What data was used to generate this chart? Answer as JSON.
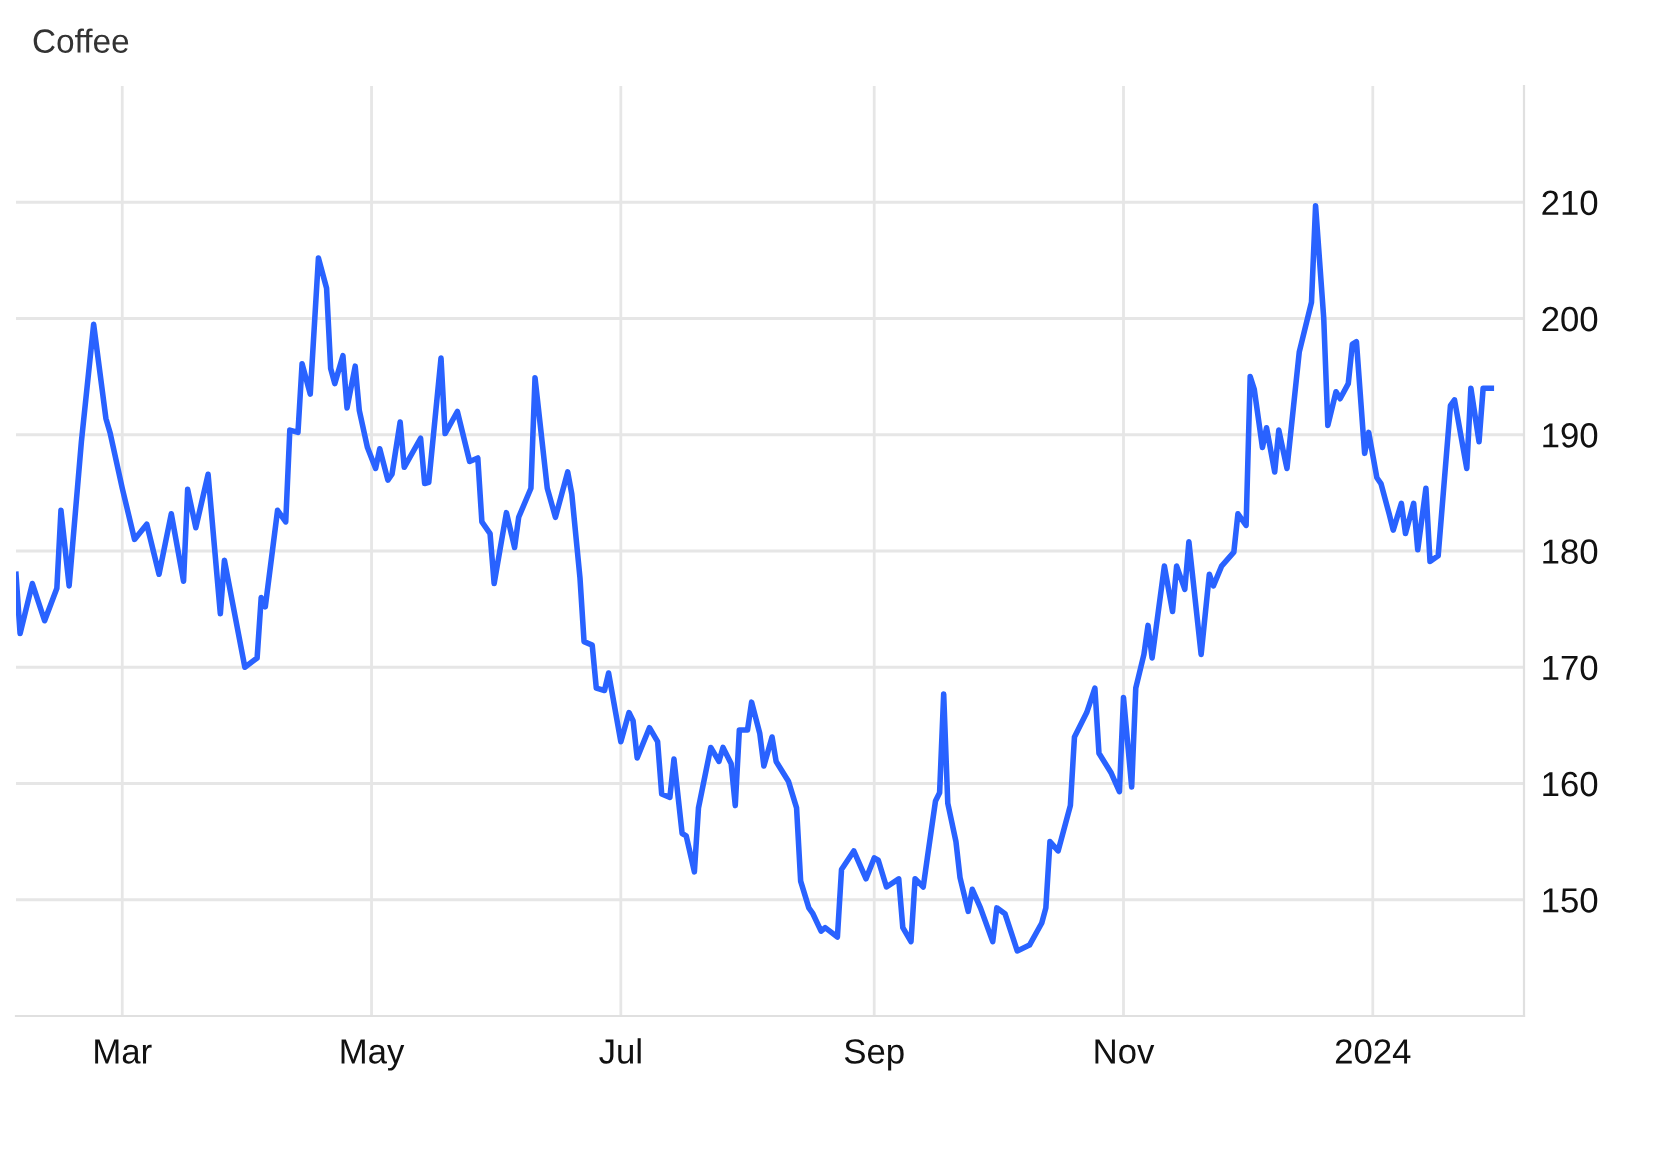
{
  "chart_data": {
    "type": "line",
    "title": "Coffee",
    "x": [
      "2023-02-03",
      "2023-02-04",
      "2023-02-07",
      "2023-02-10",
      "2023-02-13",
      "2023-02-14",
      "2023-02-16",
      "2023-02-19",
      "2023-02-22",
      "2023-02-25",
      "2023-02-26",
      "2023-03-01",
      "2023-03-04",
      "2023-03-07",
      "2023-03-10",
      "2023-03-13",
      "2023-03-16",
      "2023-03-17",
      "2023-03-19",
      "2023-03-22",
      "2023-03-25",
      "2023-03-26",
      "2023-03-31",
      "2023-04-03",
      "2023-04-04",
      "2023-04-05",
      "2023-04-08",
      "2023-04-10",
      "2023-04-11",
      "2023-04-13",
      "2023-04-14",
      "2023-04-16",
      "2023-04-18",
      "2023-04-20",
      "2023-04-21",
      "2023-04-22",
      "2023-04-24",
      "2023-04-25",
      "2023-04-27",
      "2023-04-28",
      "2023-04-30",
      "2023-05-02",
      "2023-05-03",
      "2023-05-05",
      "2023-05-06",
      "2023-05-08",
      "2023-05-09",
      "2023-05-13",
      "2023-05-14",
      "2023-05-15",
      "2023-05-18",
      "2023-05-19",
      "2023-05-22",
      "2023-05-25",
      "2023-05-27",
      "2023-05-28",
      "2023-05-30",
      "2023-05-31",
      "2023-06-03",
      "2023-06-05",
      "2023-06-06",
      "2023-06-09",
      "2023-06-10",
      "2023-06-13",
      "2023-06-15",
      "2023-06-18",
      "2023-06-19",
      "2023-06-21",
      "2023-06-22",
      "2023-06-24",
      "2023-06-25",
      "2023-06-27",
      "2023-06-28",
      "2023-07-01",
      "2023-07-03",
      "2023-07-04",
      "2023-07-05",
      "2023-07-08",
      "2023-07-10",
      "2023-07-11",
      "2023-07-13",
      "2023-07-14",
      "2023-07-16",
      "2023-07-17",
      "2023-07-19",
      "2023-07-20",
      "2023-07-23",
      "2023-07-25",
      "2023-07-26",
      "2023-07-28",
      "2023-07-29",
      "2023-07-30",
      "2023-08-01",
      "2023-08-02",
      "2023-08-04",
      "2023-08-05",
      "2023-08-07",
      "2023-08-08",
      "2023-08-11",
      "2023-08-13",
      "2023-08-14",
      "2023-08-16",
      "2023-08-17",
      "2023-08-19",
      "2023-08-20",
      "2023-08-23",
      "2023-08-24",
      "2023-08-27",
      "2023-08-30",
      "2023-09-01",
      "2023-09-02",
      "2023-09-04",
      "2023-09-07",
      "2023-09-08",
      "2023-09-10",
      "2023-09-11",
      "2023-09-13",
      "2023-09-14",
      "2023-09-16",
      "2023-09-17",
      "2023-09-18",
      "2023-09-19",
      "2023-09-21",
      "2023-09-22",
      "2023-09-24",
      "2023-09-25",
      "2023-09-27",
      "2023-09-30",
      "2023-10-01",
      "2023-10-03",
      "2023-10-06",
      "2023-10-09",
      "2023-10-12",
      "2023-10-13",
      "2023-10-14",
      "2023-10-16",
      "2023-10-19",
      "2023-10-20",
      "2023-10-23",
      "2023-10-25",
      "2023-10-26",
      "2023-10-29",
      "2023-10-31",
      "2023-11-01",
      "2023-11-03",
      "2023-11-04",
      "2023-11-06",
      "2023-11-07",
      "2023-11-08",
      "2023-11-11",
      "2023-11-13",
      "2023-11-14",
      "2023-11-16",
      "2023-11-17",
      "2023-11-20",
      "2023-11-22",
      "2023-11-23",
      "2023-11-25",
      "2023-11-28",
      "2023-11-29",
      "2023-12-01",
      "2023-12-02",
      "2023-12-03",
      "2023-12-05",
      "2023-12-06",
      "2023-12-08",
      "2023-12-09",
      "2023-12-11",
      "2023-12-14",
      "2023-12-17",
      "2023-12-18",
      "2023-12-20",
      "2023-12-21",
      "2023-12-23",
      "2023-12-24",
      "2023-12-26",
      "2023-12-27",
      "2023-12-28",
      "2023-12-30",
      "2023-12-31",
      "2024-01-02",
      "2024-01-03",
      "2024-01-05",
      "2024-01-06",
      "2024-01-08",
      "2024-01-09",
      "2024-01-11",
      "2024-01-12",
      "2024-01-14",
      "2024-01-15",
      "2024-01-17",
      "2024-01-20",
      "2024-01-21",
      "2024-01-24",
      "2024-01-25",
      "2024-01-27",
      "2024-01-28",
      "2024-01-30"
    ],
    "series": [
      {
        "color": "#2962ff",
        "values": [
          178.0,
          172.9,
          177.2,
          174.0,
          176.8,
          183.5,
          177.0,
          189.4,
          199.5,
          191.4,
          190.2,
          185.4,
          181.0,
          182.3,
          178.0,
          183.2,
          177.4,
          185.3,
          182.0,
          186.6,
          174.6,
          179.2,
          170.0,
          170.8,
          176.0,
          175.2,
          183.5,
          182.5,
          190.4,
          190.2,
          196.1,
          193.5,
          205.2,
          202.6,
          195.7,
          194.4,
          196.8,
          192.3,
          195.9,
          192.1,
          188.9,
          187.1,
          188.8,
          186.1,
          186.6,
          191.1,
          187.2,
          189.7,
          185.8,
          185.9,
          196.6,
          190.1,
          192.0,
          187.7,
          188.0,
          182.5,
          181.5,
          177.2,
          183.3,
          180.3,
          182.9,
          185.4,
          194.9,
          185.4,
          182.9,
          186.8,
          184.9,
          177.7,
          172.2,
          171.9,
          168.2,
          168.0,
          169.5,
          163.6,
          166.1,
          165.4,
          162.2,
          164.8,
          163.6,
          159.1,
          158.8,
          162.1,
          155.7,
          155.5,
          152.4,
          157.9,
          163.1,
          161.9,
          163.1,
          161.7,
          158.1,
          164.6,
          164.6,
          167.0,
          164.3,
          161.5,
          164.0,
          161.9,
          160.2,
          157.9,
          151.6,
          149.3,
          148.8,
          147.3,
          147.6,
          146.8,
          152.6,
          154.2,
          151.8,
          153.6,
          153.4,
          151.1,
          151.8,
          147.6,
          146.4,
          151.8,
          151.1,
          153.6,
          158.5,
          159.2,
          167.7,
          158.3,
          155.0,
          151.9,
          149.0,
          150.9,
          149.3,
          146.4,
          149.3,
          148.8,
          145.6,
          146.1,
          148.0,
          149.3,
          155.0,
          154.2,
          158.1,
          164.0,
          166.1,
          168.2,
          162.6,
          160.9,
          159.3,
          167.4,
          159.7,
          168.2,
          171.1,
          173.6,
          170.8,
          178.7,
          174.8,
          178.7,
          176.7,
          180.8,
          171.1,
          178.0,
          177.0,
          178.7,
          179.9,
          183.2,
          182.2,
          195.0,
          193.9,
          188.9,
          190.6,
          186.8,
          190.4,
          187.1,
          197.1,
          201.4,
          209.7,
          200.0,
          190.8,
          193.7,
          193.1,
          194.4,
          197.8,
          198.0,
          188.4,
          190.2,
          186.3,
          185.8,
          183.2,
          181.8,
          184.1,
          181.5,
          184.1,
          180.1,
          185.4,
          179.1,
          179.6,
          192.5,
          193.0,
          187.1,
          194.0,
          189.4,
          194.0,
          194.0
        ]
      }
    ],
    "xlim": [
      "2023-02-03",
      "2024-02-07"
    ],
    "xticks": [
      {
        "value": "2023-03-01",
        "label": "Mar"
      },
      {
        "value": "2023-05-01",
        "label": "May"
      },
      {
        "value": "2023-07-01",
        "label": "Jul"
      },
      {
        "value": "2023-09-01",
        "label": "Sep"
      },
      {
        "value": "2023-11-01",
        "label": "Nov"
      },
      {
        "value": "2024-01-01",
        "label": "2024"
      }
    ],
    "ylim": [
      140,
      220
    ],
    "yticks": [
      150,
      160,
      170,
      180,
      190,
      200,
      210
    ],
    "grid": true,
    "marker": "none",
    "line_style": "solid"
  }
}
